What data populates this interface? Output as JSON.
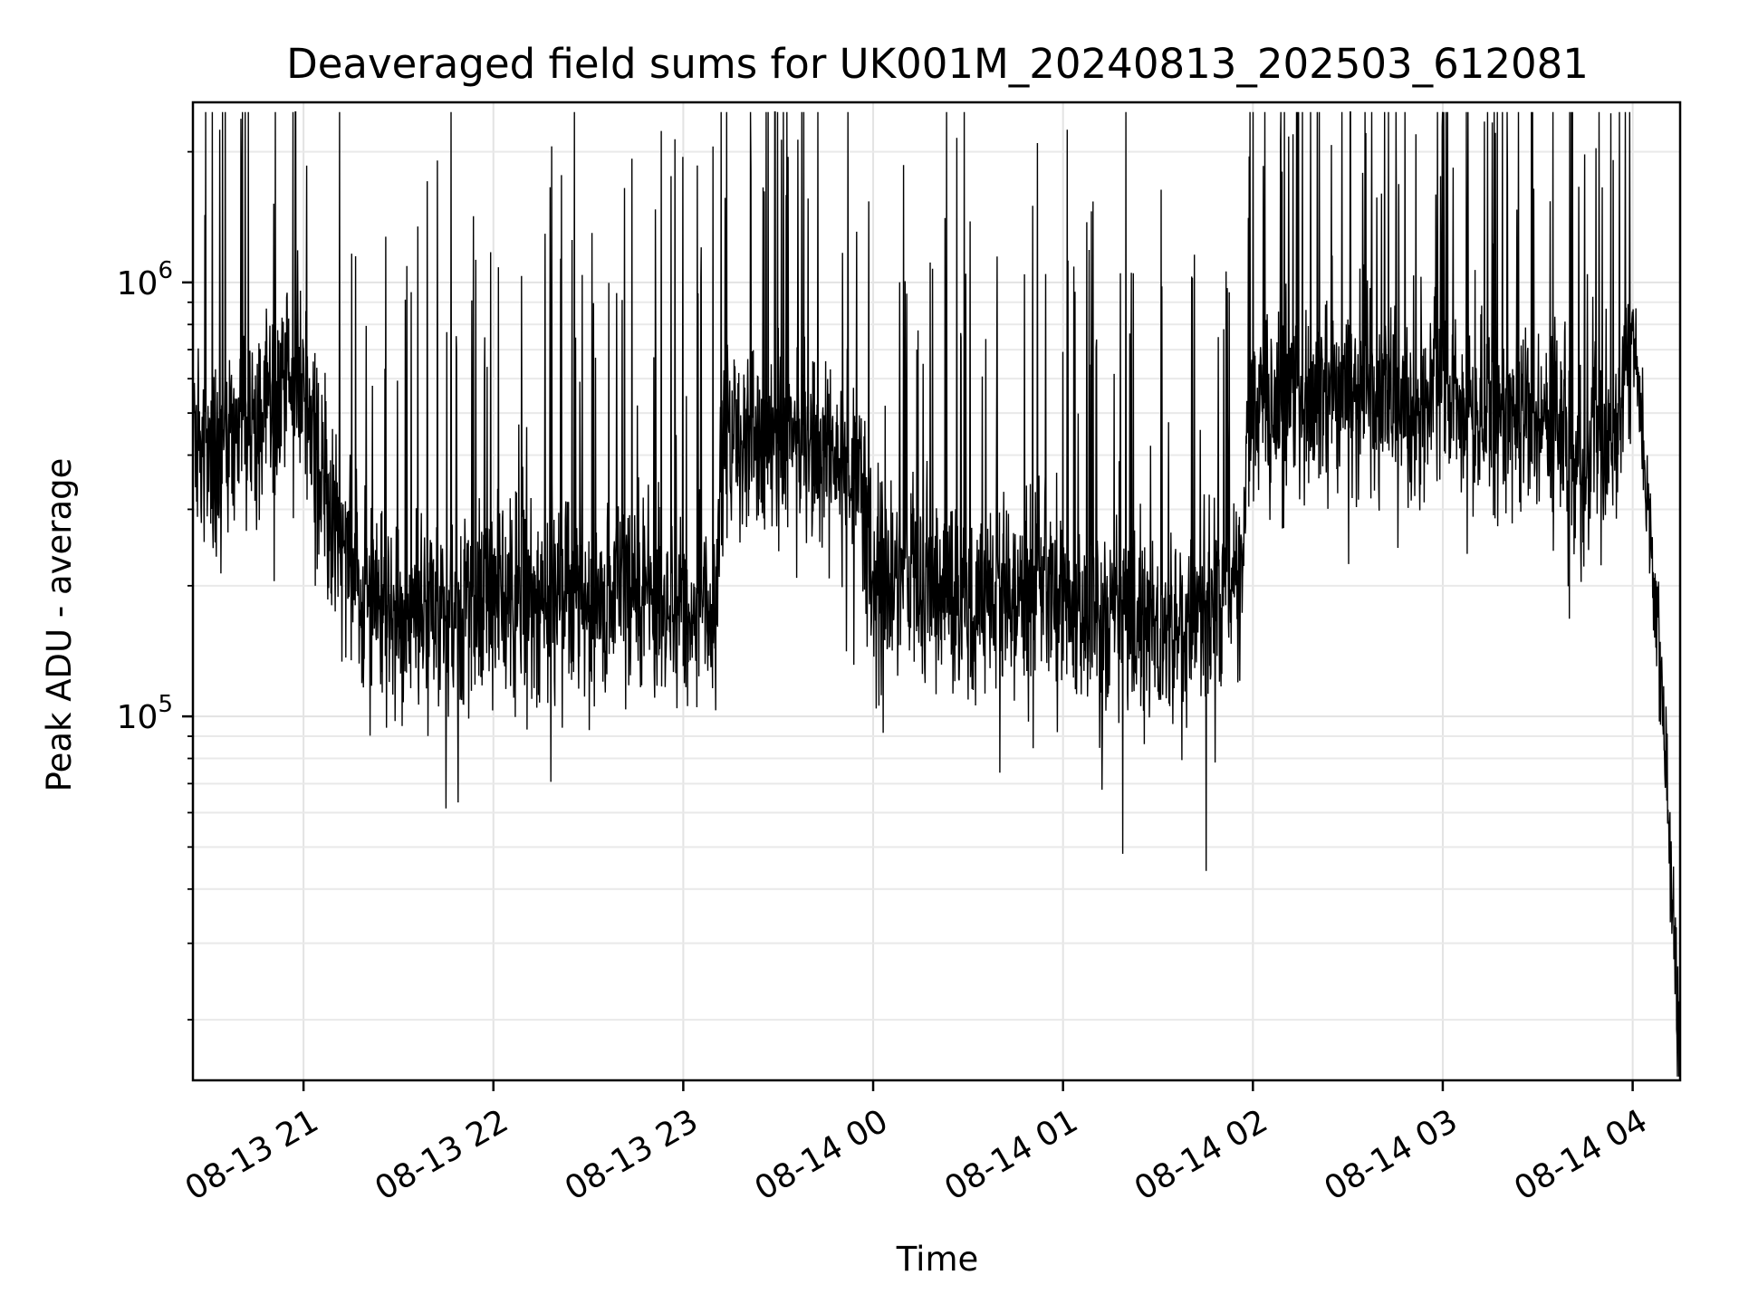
{
  "chart_data": {
    "type": "line",
    "title": "Deaveraged field sums for UK001M_20240813_202503_612081",
    "xlabel": "Time",
    "ylabel": "Peak ADU - average",
    "yscale": "log",
    "grid": true,
    "line_color": "#000000",
    "xlim": [
      "2024-08-13T20:25:03",
      "2024-08-14T04:15:00"
    ],
    "ylim": [
      14500,
      2600000
    ],
    "x_ticks": [
      {
        "label": "08-13 21",
        "time": "2024-08-13T21:00:00"
      },
      {
        "label": "08-13 22",
        "time": "2024-08-13T22:00:00"
      },
      {
        "label": "08-13 23",
        "time": "2024-08-13T23:00:00"
      },
      {
        "label": "08-14 00",
        "time": "2024-08-14T00:00:00"
      },
      {
        "label": "08-14 01",
        "time": "2024-08-14T01:00:00"
      },
      {
        "label": "08-14 02",
        "time": "2024-08-14T02:00:00"
      },
      {
        "label": "08-14 03",
        "time": "2024-08-14T03:00:00"
      },
      {
        "label": "08-14 04",
        "time": "2024-08-14T04:00:00"
      }
    ],
    "y_ticks": [
      {
        "base": "10",
        "exp": "5",
        "value": 100000
      },
      {
        "base": "10",
        "exp": "6",
        "value": 1000000
      }
    ],
    "series": [
      {
        "name": "",
        "x": [
          "2024-08-13T20:25",
          "2024-08-13T20:40",
          "2024-08-13T20:50",
          "2024-08-13T21:00",
          "2024-08-13T21:10",
          "2024-08-13T21:20",
          "2024-08-13T21:30",
          "2024-08-13T21:40",
          "2024-08-13T21:50",
          "2024-08-13T22:00",
          "2024-08-13T22:15",
          "2024-08-13T22:30",
          "2024-08-13T22:45",
          "2024-08-13T23:00",
          "2024-08-13T23:10",
          "2024-08-13T23:12",
          "2024-08-13T23:20",
          "2024-08-13T23:30",
          "2024-08-13T23:45",
          "2024-08-13T23:55",
          "2024-08-14T00:00",
          "2024-08-14T00:15",
          "2024-08-14T00:30",
          "2024-08-14T00:45",
          "2024-08-14T00:55",
          "2024-08-14T01:00",
          "2024-08-14T01:15",
          "2024-08-14T01:30",
          "2024-08-14T01:45",
          "2024-08-14T01:55",
          "2024-08-14T02:00",
          "2024-08-14T02:15",
          "2024-08-14T02:30",
          "2024-08-14T02:45",
          "2024-08-14T03:00",
          "2024-08-14T03:15",
          "2024-08-14T03:30",
          "2024-08-14T03:45",
          "2024-08-14T03:55",
          "2024-08-14T04:00",
          "2024-08-14T04:05",
          "2024-08-14T04:10",
          "2024-08-14T04:15"
        ],
        "values": [
          400000,
          440000,
          530000,
          600000,
          260000,
          180000,
          160000,
          180000,
          170000,
          180000,
          190000,
          180000,
          190000,
          180000,
          170000,
          420000,
          450000,
          420000,
          420000,
          350000,
          200000,
          210000,
          180000,
          190000,
          200000,
          180000,
          170000,
          160000,
          170000,
          200000,
          500000,
          520000,
          560000,
          520000,
          560000,
          500000,
          470000,
          430000,
          450000,
          800000,
          300000,
          90000,
          17000
        ]
      }
    ]
  }
}
